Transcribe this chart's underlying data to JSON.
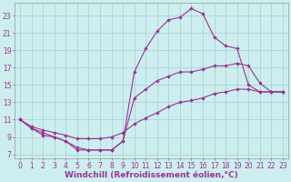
{
  "xlabel": "Windchill (Refroidissement éolien,°C)",
  "bg_color": "#cceeee",
  "grid_color": "#aacccc",
  "line_color": "#993399",
  "xlim": [
    -0.5,
    23.5
  ],
  "ylim": [
    6.5,
    24.5
  ],
  "xticks": [
    0,
    1,
    2,
    3,
    4,
    5,
    6,
    7,
    8,
    9,
    10,
    11,
    12,
    13,
    14,
    15,
    16,
    17,
    18,
    19,
    20,
    21,
    22,
    23
  ],
  "yticks": [
    7,
    9,
    11,
    13,
    15,
    17,
    19,
    21,
    23
  ],
  "line1_x": [
    0,
    1,
    2,
    3,
    4,
    5,
    6,
    7,
    8,
    9,
    10,
    11,
    12,
    13,
    14,
    15,
    16,
    17,
    18,
    19,
    20,
    21,
    22,
    23
  ],
  "line1_y": [
    11,
    10,
    9.2,
    9.0,
    8.5,
    7.5,
    7.5,
    7.5,
    7.5,
    8.5,
    16.5,
    19.2,
    21.2,
    22.5,
    22.8,
    23.8,
    23.2,
    20.5,
    19.5,
    19.2,
    15.0,
    14.2,
    14.2,
    14.2
  ],
  "line2_x": [
    0,
    1,
    2,
    3,
    4,
    5,
    6,
    7,
    8,
    9,
    10,
    11,
    12,
    13,
    14,
    15,
    16,
    17,
    18,
    19,
    20,
    21,
    22,
    23
  ],
  "line2_y": [
    11,
    10,
    9.5,
    9.0,
    8.5,
    7.8,
    7.5,
    7.5,
    7.5,
    8.5,
    13.5,
    14.5,
    15.5,
    16.0,
    16.5,
    16.5,
    16.8,
    17.2,
    17.2,
    17.5,
    17.2,
    15.2,
    14.2,
    14.2
  ],
  "line3_x": [
    0,
    1,
    2,
    3,
    4,
    5,
    6,
    7,
    8,
    9,
    10,
    11,
    12,
    13,
    14,
    15,
    16,
    17,
    18,
    19,
    20,
    21,
    22,
    23
  ],
  "line3_y": [
    11,
    10.2,
    9.8,
    9.5,
    9.2,
    8.8,
    8.8,
    8.8,
    9.0,
    9.5,
    10.5,
    11.2,
    11.8,
    12.5,
    13.0,
    13.2,
    13.5,
    14.0,
    14.2,
    14.5,
    14.5,
    14.2,
    14.2,
    14.2
  ],
  "fontsize_label": 6.5,
  "fontsize_tick": 5.5
}
